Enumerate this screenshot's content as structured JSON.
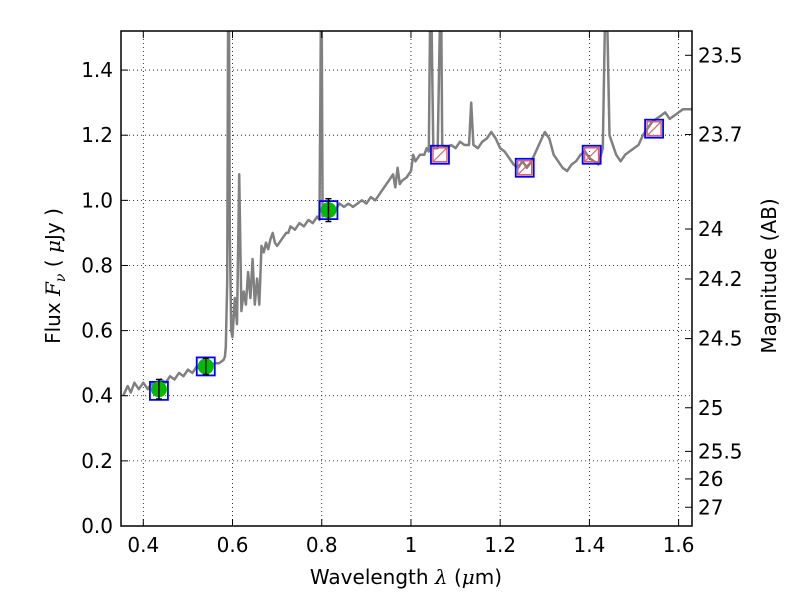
{
  "chart_data": {
    "type": "line",
    "xlabel": {
      "prefix": "Wavelength  ",
      "symbol": "λ",
      "suffix": " (",
      "unit_mu": "μ",
      "unit": "m)"
    },
    "ylabel": {
      "prefix": "Flux  ",
      "symbol": "F",
      "sub": "ν",
      "suffix": "  ( ",
      "unit_mu": "μ",
      "unit": "Jy )"
    },
    "y2label": "Magnitude (AB)",
    "xlim": [
      0.35,
      1.63
    ],
    "ylim": [
      0.0,
      1.52
    ],
    "x_ticks": [
      0.4,
      0.6,
      0.8,
      1.0,
      1.2,
      1.4,
      1.6
    ],
    "x_tick_labels": [
      "0.4",
      "0.6",
      "0.8",
      "1",
      "1.2",
      "1.4",
      "1.6"
    ],
    "y_ticks": [
      0.0,
      0.2,
      0.4,
      0.6,
      0.8,
      1.0,
      1.2,
      1.4
    ],
    "y_tick_labels": [
      "0.0",
      "0.2",
      "0.4",
      "0.6",
      "0.8",
      "1.0",
      "1.2",
      "1.4"
    ],
    "magnitude_ticks": [
      "23.5",
      "23.7",
      "24",
      "24.2",
      "24.5",
      "25",
      "25.5",
      "26",
      "27"
    ],
    "grid": true,
    "colors": {
      "spectrum": "#808080",
      "observed": "#00bb00",
      "box": "#0000ff",
      "model": "#e06060"
    },
    "spectrum": [
      [
        0.355,
        0.4
      ],
      [
        0.365,
        0.43
      ],
      [
        0.372,
        0.41
      ],
      [
        0.38,
        0.44
      ],
      [
        0.39,
        0.42
      ],
      [
        0.4,
        0.44
      ],
      [
        0.41,
        0.42
      ],
      [
        0.42,
        0.44
      ],
      [
        0.43,
        0.43
      ],
      [
        0.44,
        0.45
      ],
      [
        0.45,
        0.44
      ],
      [
        0.46,
        0.46
      ],
      [
        0.47,
        0.45
      ],
      [
        0.48,
        0.47
      ],
      [
        0.49,
        0.46
      ],
      [
        0.5,
        0.48
      ],
      [
        0.51,
        0.47
      ],
      [
        0.52,
        0.49
      ],
      [
        0.53,
        0.48
      ],
      [
        0.54,
        0.49
      ],
      [
        0.55,
        0.49
      ],
      [
        0.56,
        0.5
      ],
      [
        0.57,
        0.5
      ],
      [
        0.58,
        0.51
      ],
      [
        0.583,
        0.52
      ],
      [
        0.585,
        0.55
      ],
      [
        0.588,
        0.75
      ],
      [
        0.59,
        1.56
      ],
      [
        0.592,
        1.56
      ],
      [
        0.594,
        0.9
      ],
      [
        0.597,
        0.6
      ],
      [
        0.6,
        0.58
      ],
      [
        0.605,
        0.7
      ],
      [
        0.61,
        0.62
      ],
      [
        0.615,
        1.08
      ],
      [
        0.62,
        0.66
      ],
      [
        0.625,
        0.72
      ],
      [
        0.63,
        0.68
      ],
      [
        0.635,
        0.78
      ],
      [
        0.64,
        0.7
      ],
      [
        0.645,
        0.82
      ],
      [
        0.65,
        0.68
      ],
      [
        0.655,
        0.76
      ],
      [
        0.66,
        0.68
      ],
      [
        0.665,
        0.86
      ],
      [
        0.67,
        0.84
      ],
      [
        0.675,
        0.87
      ],
      [
        0.68,
        0.85
      ],
      [
        0.685,
        0.88
      ],
      [
        0.69,
        0.9
      ],
      [
        0.695,
        0.87
      ],
      [
        0.7,
        0.86
      ],
      [
        0.71,
        0.88
      ],
      [
        0.72,
        0.9
      ],
      [
        0.725,
        0.9
      ],
      [
        0.73,
        0.92
      ],
      [
        0.74,
        0.91
      ],
      [
        0.75,
        0.93
      ],
      [
        0.76,
        0.92
      ],
      [
        0.77,
        0.94
      ],
      [
        0.78,
        0.93
      ],
      [
        0.79,
        0.95
      ],
      [
        0.795,
        0.94
      ],
      [
        0.798,
        1.56
      ],
      [
        0.8,
        1.56
      ],
      [
        0.802,
        0.95
      ],
      [
        0.81,
        0.96
      ],
      [
        0.82,
        0.98
      ],
      [
        0.83,
        0.97
      ],
      [
        0.84,
        0.99
      ],
      [
        0.85,
        0.98
      ],
      [
        0.86,
        0.99
      ],
      [
        0.87,
        0.98
      ],
      [
        0.88,
        0.99
      ],
      [
        0.89,
        1.0
      ],
      [
        0.9,
        0.99
      ],
      [
        0.91,
        1.01
      ],
      [
        0.92,
        1.0
      ],
      [
        0.93,
        1.02
      ],
      [
        0.94,
        1.04
      ],
      [
        0.95,
        1.06
      ],
      [
        0.96,
        1.08
      ],
      [
        0.965,
        1.04
      ],
      [
        0.97,
        1.1
      ],
      [
        0.975,
        1.05
      ],
      [
        0.98,
        1.06
      ],
      [
        0.99,
        1.07
      ],
      [
        1.0,
        1.09
      ],
      [
        1.005,
        1.14
      ],
      [
        1.01,
        1.12
      ],
      [
        1.02,
        1.14
      ],
      [
        1.03,
        1.14
      ],
      [
        1.035,
        1.16
      ],
      [
        1.04,
        1.15
      ],
      [
        1.043,
        1.56
      ],
      [
        1.046,
        1.56
      ],
      [
        1.05,
        1.16
      ],
      [
        1.06,
        1.16
      ],
      [
        1.065,
        1.56
      ],
      [
        1.068,
        1.56
      ],
      [
        1.07,
        1.17
      ],
      [
        1.08,
        1.16
      ],
      [
        1.09,
        1.17
      ],
      [
        1.1,
        1.16
      ],
      [
        1.11,
        1.18
      ],
      [
        1.12,
        1.17
      ],
      [
        1.13,
        1.17
      ],
      [
        1.135,
        1.3
      ],
      [
        1.14,
        1.17
      ],
      [
        1.15,
        1.16
      ],
      [
        1.16,
        1.18
      ],
      [
        1.17,
        1.19
      ],
      [
        1.18,
        1.21
      ],
      [
        1.19,
        1.19
      ],
      [
        1.2,
        1.16
      ],
      [
        1.21,
        1.15
      ],
      [
        1.22,
        1.13
      ],
      [
        1.23,
        1.11
      ],
      [
        1.24,
        1.1
      ],
      [
        1.25,
        1.12
      ],
      [
        1.26,
        1.1
      ],
      [
        1.27,
        1.12
      ],
      [
        1.28,
        1.15
      ],
      [
        1.29,
        1.18
      ],
      [
        1.3,
        1.21
      ],
      [
        1.31,
        1.19
      ],
      [
        1.32,
        1.14
      ],
      [
        1.33,
        1.12
      ],
      [
        1.34,
        1.1
      ],
      [
        1.35,
        1.09
      ],
      [
        1.36,
        1.11
      ],
      [
        1.37,
        1.12
      ],
      [
        1.38,
        1.14
      ],
      [
        1.39,
        1.15
      ],
      [
        1.4,
        1.13
      ],
      [
        1.41,
        1.12
      ],
      [
        1.42,
        1.11
      ],
      [
        1.43,
        1.16
      ],
      [
        1.435,
        1.56
      ],
      [
        1.44,
        1.56
      ],
      [
        1.445,
        1.2
      ],
      [
        1.45,
        1.18
      ],
      [
        1.46,
        1.14
      ],
      [
        1.47,
        1.12
      ],
      [
        1.48,
        1.14
      ],
      [
        1.49,
        1.15
      ],
      [
        1.5,
        1.16
      ],
      [
        1.51,
        1.17
      ],
      [
        1.52,
        1.2
      ],
      [
        1.53,
        1.22
      ],
      [
        1.54,
        1.24
      ],
      [
        1.55,
        1.25
      ],
      [
        1.56,
        1.26
      ],
      [
        1.57,
        1.27
      ],
      [
        1.58,
        1.25
      ],
      [
        1.59,
        1.26
      ],
      [
        1.6,
        1.27
      ],
      [
        1.61,
        1.28
      ],
      [
        1.62,
        1.28
      ],
      [
        1.63,
        1.28
      ]
    ],
    "observed": [
      {
        "x": 0.435,
        "y": 0.42,
        "err": 0.03
      },
      {
        "x": 0.54,
        "y": 0.49,
        "err": 0.025
      },
      {
        "x": 0.815,
        "y": 0.97,
        "err": 0.035
      }
    ],
    "model_boxes": [
      {
        "x": 0.435,
        "y": 0.415
      },
      {
        "x": 0.54,
        "y": 0.49
      },
      {
        "x": 0.815,
        "y": 0.97
      },
      {
        "x": 1.065,
        "y": 1.14
      },
      {
        "x": 1.255,
        "y": 1.1
      },
      {
        "x": 1.405,
        "y": 1.14
      },
      {
        "x": 1.545,
        "y": 1.22
      }
    ],
    "model_only": [
      {
        "x": 1.065,
        "y": 1.14
      },
      {
        "x": 1.255,
        "y": 1.1
      },
      {
        "x": 1.405,
        "y": 1.14
      },
      {
        "x": 1.545,
        "y": 1.22
      }
    ]
  }
}
